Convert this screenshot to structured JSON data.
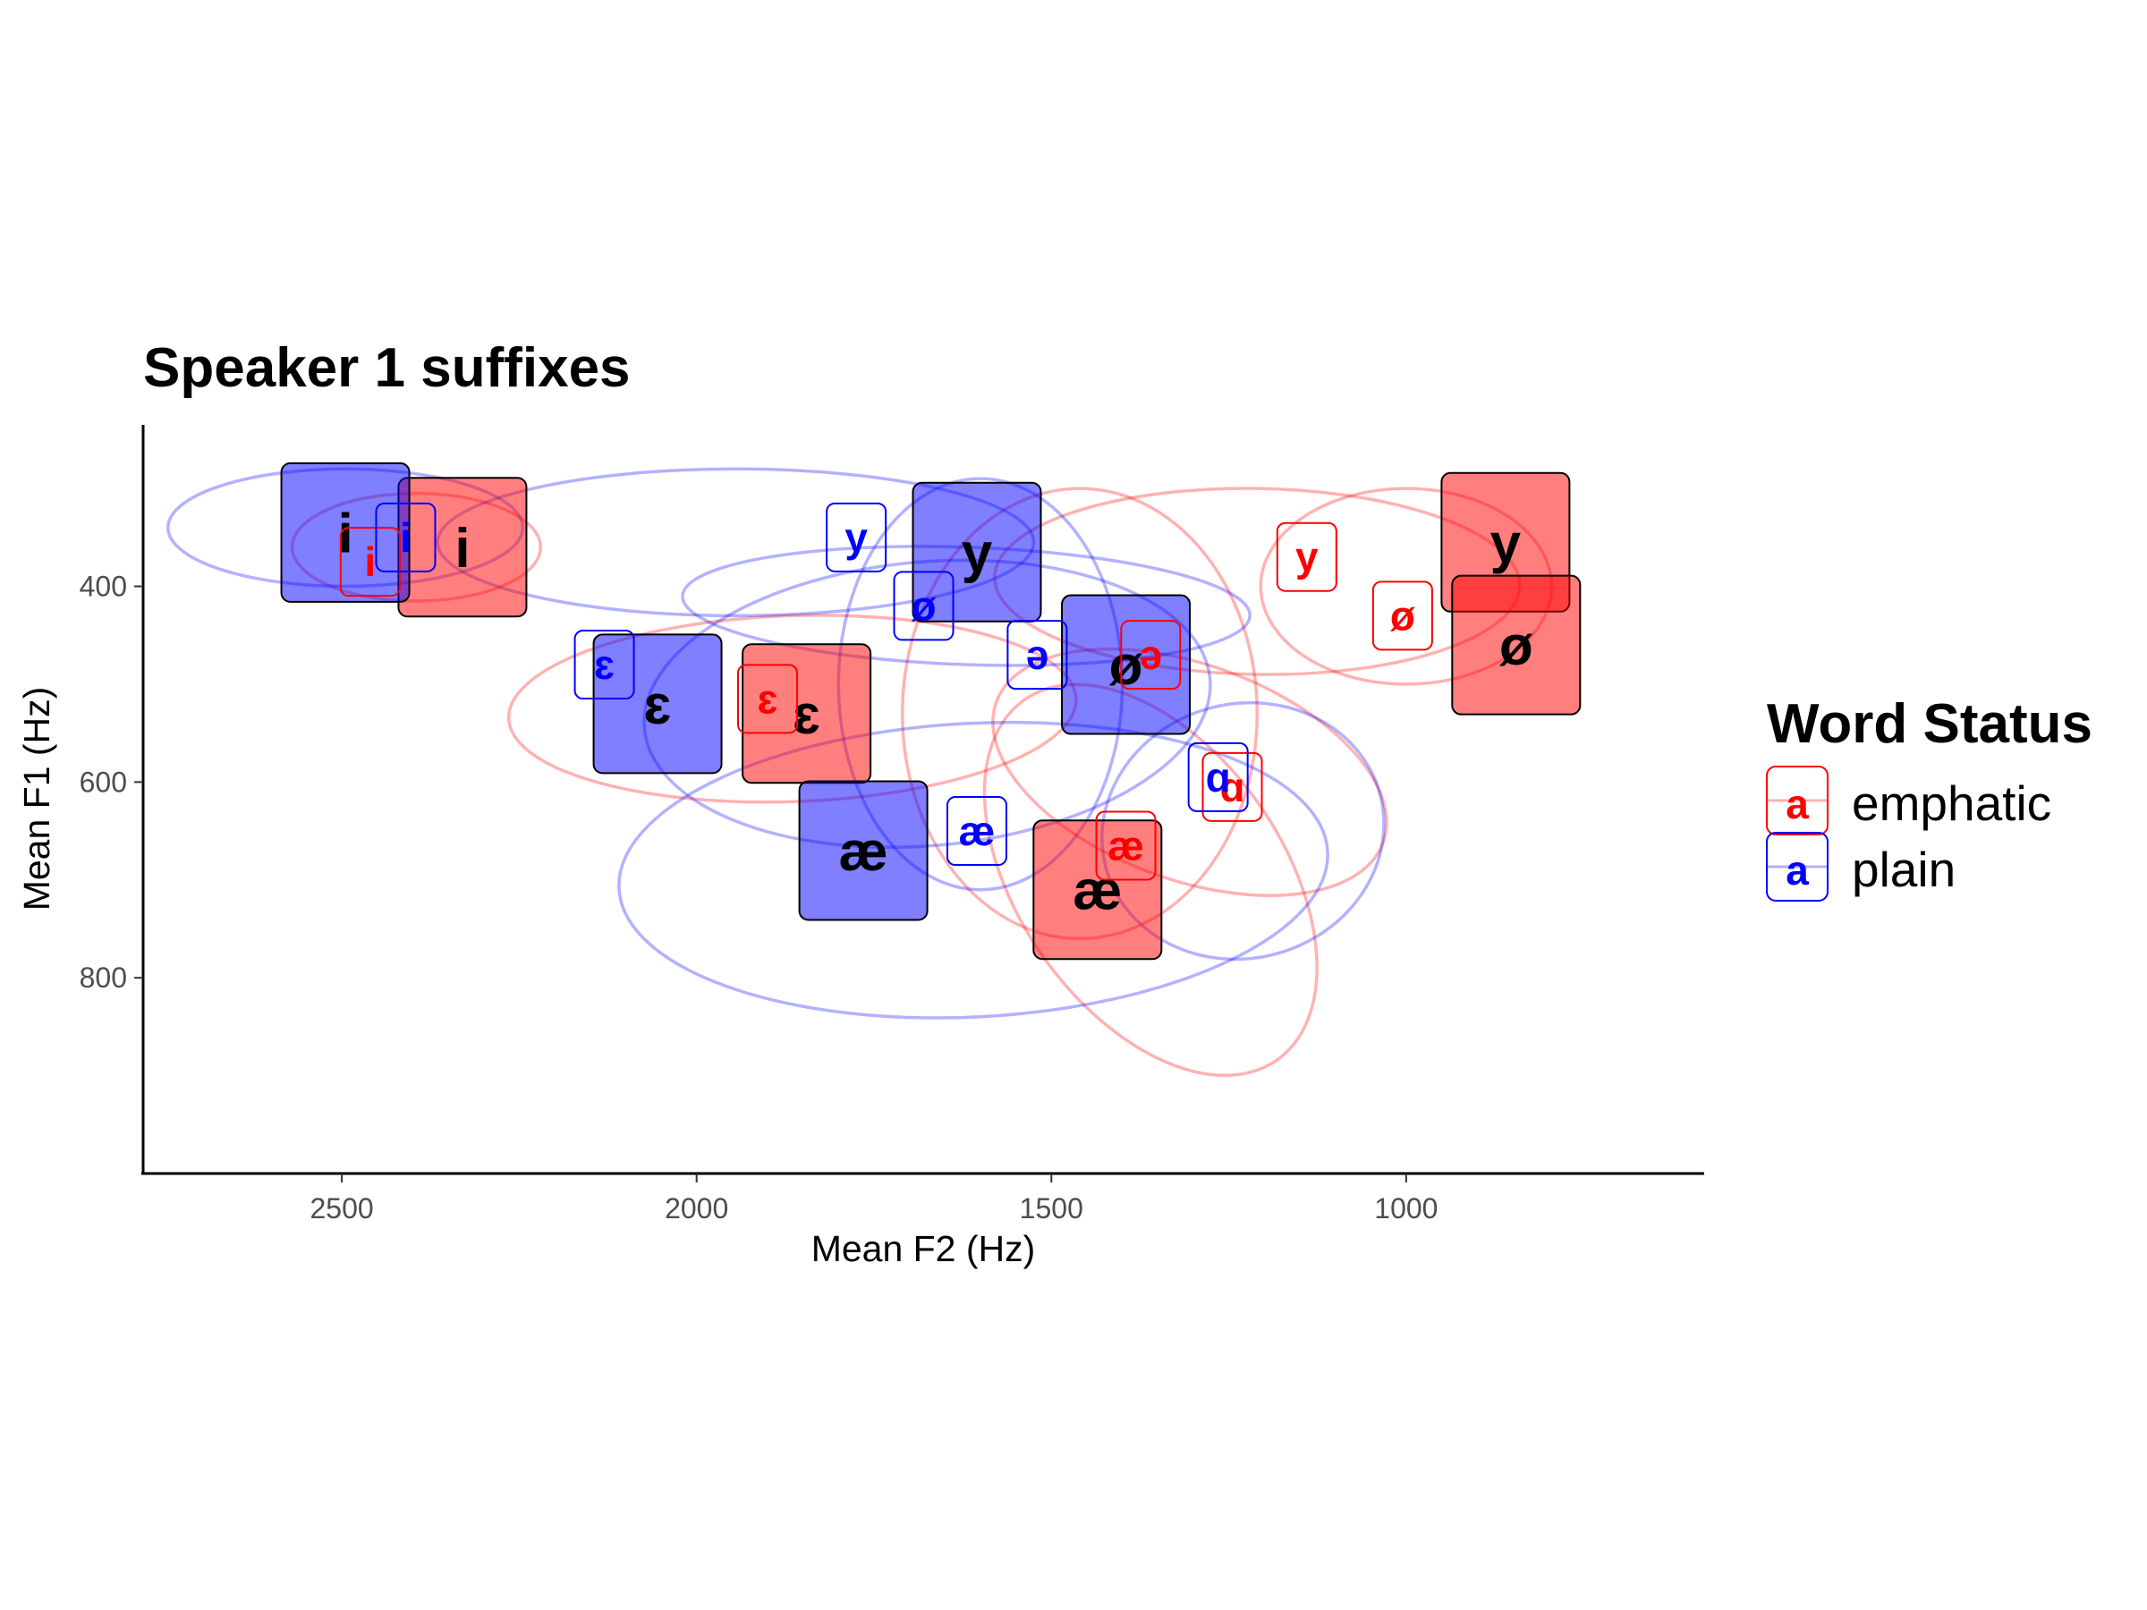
{
  "chart_data": {
    "type": "scatter",
    "title": "Speaker 1 suffixes",
    "xlabel": "Mean F2 (Hz)",
    "ylabel": "Mean F1 (Hz)",
    "x_reversed": true,
    "y_reversed": true,
    "xlim": [
      2780,
      580
    ],
    "ylim": [
      235,
      1000
    ],
    "x_ticks": [
      2500,
      2000,
      1500,
      1000
    ],
    "y_ticks": [
      400,
      600,
      800
    ],
    "x_tick_labels": [
      "2500",
      "2000",
      "1500",
      "1000"
    ],
    "y_tick_labels": [
      "400",
      "600",
      "800"
    ],
    "legend": {
      "title": "Word Status",
      "placement": "right",
      "key_glyph": "a",
      "items": [
        {
          "label": "emphatic",
          "color": "#ff0000"
        },
        {
          "label": "plain",
          "color": "#0000ff"
        }
      ]
    },
    "series": [
      {
        "name": "emphatic",
        "color": "#ff0000",
        "means": [
          {
            "vowel": "i",
            "f2": 2330,
            "f1": 360
          },
          {
            "vowel": "ɛ",
            "f2": 1845,
            "f1": 530
          },
          {
            "vowel": "æ",
            "f2": 1435,
            "f1": 710
          },
          {
            "vowel": "y",
            "f2": 860,
            "f1": 355
          },
          {
            "vowel": "ø",
            "f2": 845,
            "f1": 460
          }
        ],
        "tokens": [
          {
            "vowel": "i",
            "f2": 2460,
            "f1": 375
          },
          {
            "vowel": "ɛ",
            "f2": 1900,
            "f1": 515
          },
          {
            "vowel": "æ",
            "f2": 1395,
            "f1": 665
          },
          {
            "vowel": "y",
            "f2": 1140,
            "f1": 370
          },
          {
            "vowel": "ø",
            "f2": 1005,
            "f1": 430
          },
          {
            "vowel": "ə",
            "f2": 1360,
            "f1": 470
          },
          {
            "vowel": "ɑ",
            "f2": 1245,
            "f1": 605
          }
        ],
        "ellipses": [
          {
            "vowel": "i",
            "cx": 2395,
            "cy": 360,
            "rx": 175,
            "ry": 55,
            "angle": 0
          },
          {
            "vowel": "ɛ",
            "cx": 1865,
            "cy": 525,
            "rx": 400,
            "ry": 95,
            "angle": -2
          },
          {
            "vowel": "æ",
            "cx": 1360,
            "cy": 700,
            "rx": 310,
            "ry": 135,
            "angle": 55
          },
          {
            "vowel": "y",
            "cx": 1210,
            "cy": 395,
            "rx": 370,
            "ry": 95,
            "angle": 1
          },
          {
            "vowel": "ø",
            "cx": 1000,
            "cy": 400,
            "rx": 205,
            "ry": 100,
            "angle": 0
          },
          {
            "vowel": "ə",
            "cx": 1460,
            "cy": 530,
            "rx": 250,
            "ry": 230,
            "angle": 0
          },
          {
            "vowel": "ɑ",
            "cx": 1305,
            "cy": 590,
            "rx": 290,
            "ry": 110,
            "angle": 20
          }
        ]
      },
      {
        "name": "plain",
        "color": "#0000ff",
        "means": [
          {
            "vowel": "i",
            "f2": 2495,
            "f1": 345
          },
          {
            "vowel": "ɛ",
            "f2": 2055,
            "f1": 520
          },
          {
            "vowel": "æ",
            "f2": 1765,
            "f1": 670
          },
          {
            "vowel": "y",
            "f2": 1605,
            "f1": 365
          },
          {
            "vowel": "ø",
            "f2": 1395,
            "f1": 480
          }
        ],
        "tokens": [
          {
            "vowel": "i",
            "f2": 2410,
            "f1": 350
          },
          {
            "vowel": "ɛ",
            "f2": 2130,
            "f1": 480
          },
          {
            "vowel": "æ",
            "f2": 1605,
            "f1": 650
          },
          {
            "vowel": "y",
            "f2": 1775,
            "f1": 350
          },
          {
            "vowel": "ø",
            "f2": 1680,
            "f1": 420
          },
          {
            "vowel": "ə",
            "f2": 1520,
            "f1": 470
          },
          {
            "vowel": "ɑ",
            "f2": 1265,
            "f1": 595
          }
        ],
        "ellipses": [
          {
            "vowel": "i",
            "cx": 2495,
            "cy": 340,
            "rx": 250,
            "ry": 60,
            "angle": 0
          },
          {
            "vowel": "ɛ",
            "cx": 1675,
            "cy": 520,
            "rx": 400,
            "ry": 145,
            "angle": -5
          },
          {
            "vowel": "æ",
            "cx": 1610,
            "cy": 690,
            "rx": 500,
            "ry": 150,
            "angle": -3
          },
          {
            "vowel": "y",
            "cx": 1945,
            "cy": 355,
            "rx": 420,
            "ry": 75,
            "angle": 0
          },
          {
            "vowel": "ø",
            "cx": 1620,
            "cy": 420,
            "rx": 400,
            "ry": 60,
            "angle": 2
          },
          {
            "vowel": "ə",
            "cx": 1600,
            "cy": 500,
            "rx": 200,
            "ry": 210,
            "angle": 0
          },
          {
            "vowel": "ɑ",
            "cx": 1230,
            "cy": 650,
            "rx": 200,
            "ry": 130,
            "angle": -15
          }
        ]
      }
    ]
  }
}
